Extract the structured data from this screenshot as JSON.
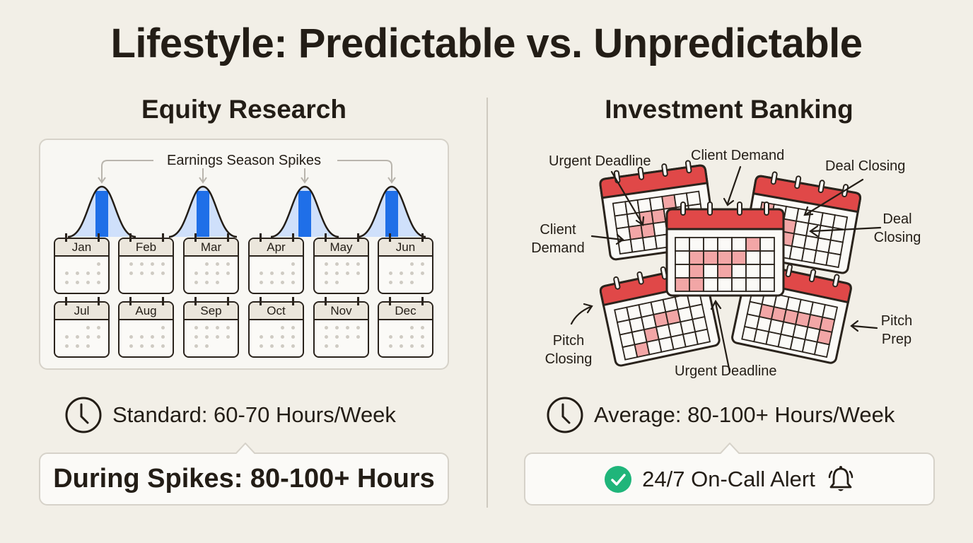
{
  "title": "Lifestyle: Predictable vs. Unpredictable",
  "left": {
    "heading": "Equity Research",
    "spikes_label": "Earnings Season Spikes",
    "months": [
      "Jan",
      "Feb",
      "Mar",
      "Apr",
      "May",
      "Jun",
      "Jul",
      "Aug",
      "Sep",
      "Oct",
      "Nov",
      "Dec"
    ],
    "spike_months": [
      "Jan",
      "Mar",
      "Apr",
      "Jun"
    ],
    "hours_text": "Standard: 60-70 Hours/Week",
    "callout_text": "During Spikes: 80-100+ Hours",
    "spike_color": "#1f6fe8"
  },
  "right": {
    "heading": "Investment Banking",
    "labels": {
      "urgent_top": "Urgent Deadline",
      "client_top": "Client Demand",
      "deal_top": "Deal Closing",
      "client_left_1": "Client",
      "client_left_2": "Demand",
      "deal_right_1": "Deal",
      "deal_right_2": "Closing",
      "pitch_left_1": "Pitch",
      "pitch_left_2": "Closing",
      "pitch_right_1": "Pitch",
      "pitch_right_2": "Prep",
      "urgent_bottom": "Urgent Deadline"
    },
    "hours_text": "Average: 80-100+ Hours/Week",
    "callout_text": "24/7 On-Call Alert",
    "accent_red": "#e04848",
    "check_green": "#1fb57a"
  }
}
